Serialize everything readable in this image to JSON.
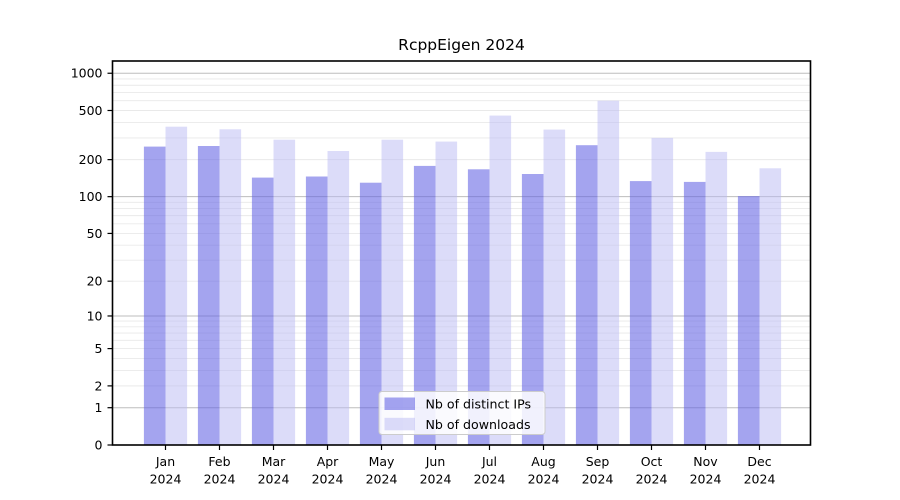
{
  "chart_data": {
    "type": "bar",
    "title": "RcppEigen 2024",
    "categories": [
      "Jan 2024",
      "Feb 2024",
      "Mar 2024",
      "Apr 2024",
      "May 2024",
      "Jun 2024",
      "Jul 2024",
      "Aug 2024",
      "Sep 2024",
      "Oct 2024",
      "Nov 2024",
      "Dec 2024"
    ],
    "month_labels": [
      "Jan",
      "Feb",
      "Mar",
      "Apr",
      "May",
      "Jun",
      "Jul",
      "Aug",
      "Sep",
      "Oct",
      "Nov",
      "Dec"
    ],
    "year_label": "2024",
    "series": [
      {
        "name": "Nb of distinct IPs",
        "color": "rgba(98,98,228,0.58)",
        "values": [
          255,
          258,
          143,
          146,
          130,
          178,
          167,
          153,
          262,
          134,
          132,
          101
        ]
      },
      {
        "name": "Nb of downloads",
        "color": "rgba(186,186,244,0.5)",
        "values": [
          370,
          352,
          290,
          235,
          290,
          280,
          455,
          350,
          600,
          300,
          231,
          170
        ]
      }
    ],
    "yscale": "log1p",
    "ylim": [
      0,
      1250
    ],
    "ytick_values": [
      1000,
      500,
      200,
      100,
      50,
      20,
      10,
      5,
      2,
      1,
      0
    ],
    "ytick_labels": [
      "1000",
      "500",
      "200",
      "100",
      "50",
      "20",
      "10",
      "5",
      "2",
      "1",
      "0"
    ],
    "xlabel": "",
    "ylabel": "",
    "grid": true,
    "legend_position": "bottom-center"
  },
  "colors": {
    "background": "#ffffff",
    "spine": "#000000",
    "major_grid": "#bdbdbd",
    "minor_grid": "#e9e9e9",
    "legend_bg": "rgba(255,255,255,0.85)",
    "legend_border": "#cccccc",
    "text": "#000000"
  }
}
